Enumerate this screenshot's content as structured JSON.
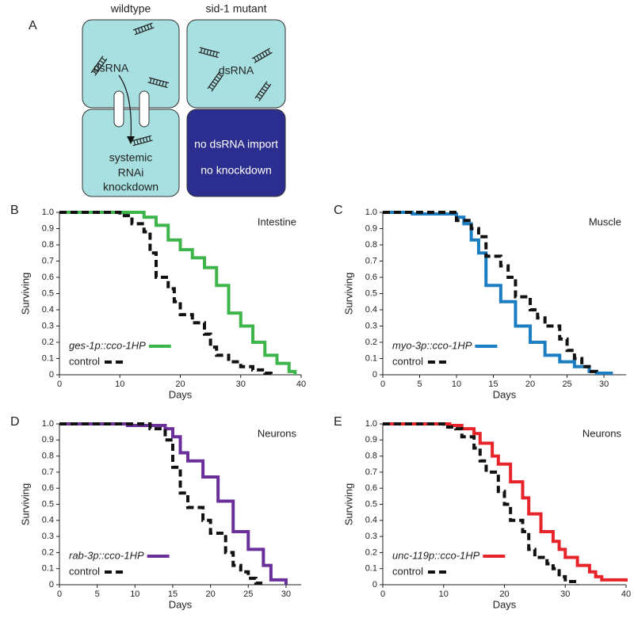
{
  "panel_a": {
    "letter": "A",
    "left_title": "wildtype",
    "right_title": "sid-1 mutant",
    "left_top": "dsRNA",
    "left_bottom": [
      "systemic",
      "RNAi",
      "knockdown"
    ],
    "right_top": "dsRNA",
    "right_bottom": [
      "no dsRNA import",
      "no knockdown"
    ]
  },
  "chart_data": [
    {
      "type": "step",
      "letter": "B",
      "annotation": "Intestine",
      "xlabel": "Days",
      "ylabel": "Surviving",
      "xlim": [
        0,
        40
      ],
      "xticks": [
        0,
        10,
        20,
        30,
        40
      ],
      "ylim": [
        0,
        1
      ],
      "yticks": [
        0,
        0.1,
        0.2,
        0.3,
        0.4,
        0.5,
        0.6,
        0.7,
        0.8,
        0.9,
        {
          "value": 1,
          "label": "1.0"
        }
      ],
      "legend": "lower left",
      "series": [
        {
          "name": "ges-1p::cco-1HP",
          "color": "#3db54a",
          "dashed": false,
          "x": [
            0,
            14,
            16,
            18,
            20,
            22,
            24,
            26,
            28,
            30,
            32,
            34,
            36,
            38,
            39
          ],
          "values": [
            1,
            0.97,
            0.92,
            0.83,
            0.77,
            0.72,
            0.66,
            0.55,
            0.38,
            0.3,
            0.2,
            0.12,
            0.07,
            0.02,
            0
          ]
        },
        {
          "name": "control",
          "color": "#111111",
          "dashed": true,
          "x": [
            0,
            10,
            12,
            14,
            15,
            16,
            18,
            19,
            20,
            22,
            24,
            25,
            26,
            28,
            30,
            32,
            34,
            35
          ],
          "values": [
            1,
            0.98,
            0.93,
            0.88,
            0.75,
            0.6,
            0.53,
            0.45,
            0.37,
            0.32,
            0.25,
            0.17,
            0.12,
            0.08,
            0.05,
            0.03,
            0.01,
            0
          ]
        }
      ]
    },
    {
      "type": "step",
      "letter": "C",
      "annotation": "Muscle",
      "xlabel": "Days",
      "ylabel": "Surviving",
      "xlim": [
        0,
        33
      ],
      "xticks": [
        0,
        5,
        10,
        15,
        20,
        25,
        30
      ],
      "ylim": [
        0,
        1
      ],
      "yticks": [
        0,
        0.1,
        0.2,
        0.3,
        0.4,
        0.5,
        0.6,
        0.7,
        0.8,
        0.9,
        {
          "value": 1,
          "label": "1.0"
        }
      ],
      "legend": "lower left",
      "series": [
        {
          "name": "myo-3p::cco-1HP",
          "color": "#1b7ec2",
          "dashed": false,
          "x": [
            0,
            4,
            10,
            11,
            12,
            13,
            14,
            16,
            18,
            20,
            22,
            24,
            26,
            28,
            29,
            31
          ],
          "values": [
            1,
            0.99,
            0.97,
            0.93,
            0.83,
            0.75,
            0.55,
            0.45,
            0.3,
            0.2,
            0.12,
            0.08,
            0.05,
            0.02,
            0.01,
            0
          ]
        },
        {
          "name": "control",
          "color": "#111111",
          "dashed": true,
          "x": [
            0,
            10,
            12,
            13,
            14,
            16,
            17,
            18,
            20,
            21,
            22,
            24,
            25,
            26,
            27,
            28,
            29
          ],
          "values": [
            1,
            0.95,
            0.9,
            0.85,
            0.73,
            0.67,
            0.6,
            0.48,
            0.4,
            0.35,
            0.3,
            0.22,
            0.15,
            0.1,
            0.05,
            0.02,
            0
          ]
        }
      ]
    },
    {
      "type": "step",
      "letter": "D",
      "annotation": "Neurons",
      "xlabel": "Days",
      "ylabel": "Surviving",
      "xlim": [
        0,
        32
      ],
      "xticks": [
        0,
        5,
        10,
        15,
        20,
        25,
        30
      ],
      "ylim": [
        0,
        1
      ],
      "yticks": [
        0,
        0.1,
        0.2,
        0.3,
        0.4,
        0.5,
        0.6,
        0.7,
        0.8,
        0.9,
        {
          "value": 1,
          "label": "1.0"
        }
      ],
      "legend": "lower left",
      "series": [
        {
          "name": "rab-3p::cco-1HP",
          "color": "#6b2f9c",
          "dashed": false,
          "x": [
            0,
            9,
            14,
            15,
            16,
            17,
            19,
            21,
            23,
            25,
            27,
            28,
            30
          ],
          "values": [
            1,
            0.99,
            0.97,
            0.92,
            0.82,
            0.77,
            0.67,
            0.52,
            0.33,
            0.22,
            0.12,
            0.03,
            0
          ]
        },
        {
          "name": "control",
          "color": "#111111",
          "dashed": true,
          "x": [
            0,
            12,
            14,
            15,
            16,
            17,
            19,
            20,
            22,
            23,
            24,
            25,
            26,
            27
          ],
          "values": [
            1,
            0.97,
            0.9,
            0.73,
            0.57,
            0.48,
            0.4,
            0.32,
            0.2,
            0.12,
            0.08,
            0.04,
            0.01,
            0
          ]
        }
      ]
    },
    {
      "type": "step",
      "letter": "E",
      "annotation": "Neurons",
      "xlabel": "Days",
      "ylabel": "Surviving",
      "xlim": [
        0,
        40
      ],
      "xticks": [
        0,
        10,
        20,
        30,
        40
      ],
      "ylim": [
        0,
        1
      ],
      "yticks": [
        0,
        0.1,
        0.2,
        0.3,
        0.4,
        0.5,
        0.6,
        0.7,
        0.8,
        0.9,
        {
          "value": 1,
          "label": "1.0"
        }
      ],
      "legend": "lower left",
      "series": [
        {
          "name": "unc-119p::cco-1HP",
          "color": "#e8242b",
          "dashed": false,
          "x": [
            0,
            11,
            13,
            15,
            16,
            18,
            19,
            21,
            23,
            24,
            26,
            28,
            29,
            30,
            32,
            34,
            35,
            36,
            40
          ],
          "values": [
            1,
            0.99,
            0.97,
            0.94,
            0.88,
            0.8,
            0.75,
            0.64,
            0.54,
            0.44,
            0.33,
            0.27,
            0.22,
            0.17,
            0.12,
            0.08,
            0.05,
            0.03,
            0.02
          ]
        },
        {
          "name": "control",
          "color": "#111111",
          "dashed": true,
          "x": [
            0,
            10,
            12,
            13,
            15,
            16,
            17,
            19,
            20,
            21,
            23,
            24,
            25,
            27,
            28,
            29,
            30,
            32
          ],
          "values": [
            1,
            0.98,
            0.97,
            0.92,
            0.85,
            0.77,
            0.7,
            0.58,
            0.5,
            0.4,
            0.33,
            0.22,
            0.17,
            0.13,
            0.1,
            0.05,
            0.02,
            0
          ]
        }
      ]
    }
  ]
}
